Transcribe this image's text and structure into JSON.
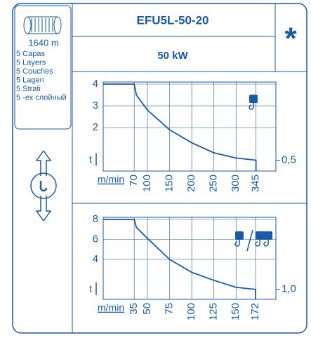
{
  "header": {
    "length": "1640 m",
    "layers": [
      "5 Capas",
      "5 Layers",
      "5 Couches",
      "5 Lagen",
      "5 Strati",
      "5 -ех слойный"
    ],
    "model": "EFU5L-50-20",
    "power": "50 kW",
    "mark": "*"
  },
  "chart_data": [
    {
      "type": "line",
      "x_label": "m/min",
      "y_label": "t",
      "color": "#1a5aa8",
      "x": [
        0,
        70,
        75,
        100,
        150,
        200,
        250,
        300,
        345,
        345
      ],
      "values": [
        4,
        4,
        3.5,
        2.8,
        1.9,
        1.3,
        0.84,
        0.6,
        0.5,
        0
      ],
      "xlim": [
        0,
        390
      ],
      "ylim": [
        0,
        4
      ],
      "xticks": [
        70,
        100,
        150,
        200,
        250,
        300,
        345
      ],
      "yticks": [
        2,
        3,
        4
      ],
      "ref": {
        "value": 0.5,
        "label": "0,5"
      }
    },
    {
      "type": "line",
      "x_label": "m/min",
      "y_label": "t",
      "color": "#1a5aa8",
      "x": [
        0,
        35,
        37.5,
        50,
        75,
        100,
        125,
        150,
        172,
        172
      ],
      "values": [
        8,
        8,
        7.2,
        6.1,
        4,
        2.7,
        1.9,
        1.2,
        1,
        0
      ],
      "xlim": [
        0,
        195
      ],
      "ylim": [
        0,
        8
      ],
      "xticks": [
        35,
        50,
        75,
        100,
        125,
        150,
        172
      ],
      "yticks": [
        4,
        6,
        8
      ],
      "ref": {
        "value": 1,
        "label": "1,0"
      }
    }
  ]
}
